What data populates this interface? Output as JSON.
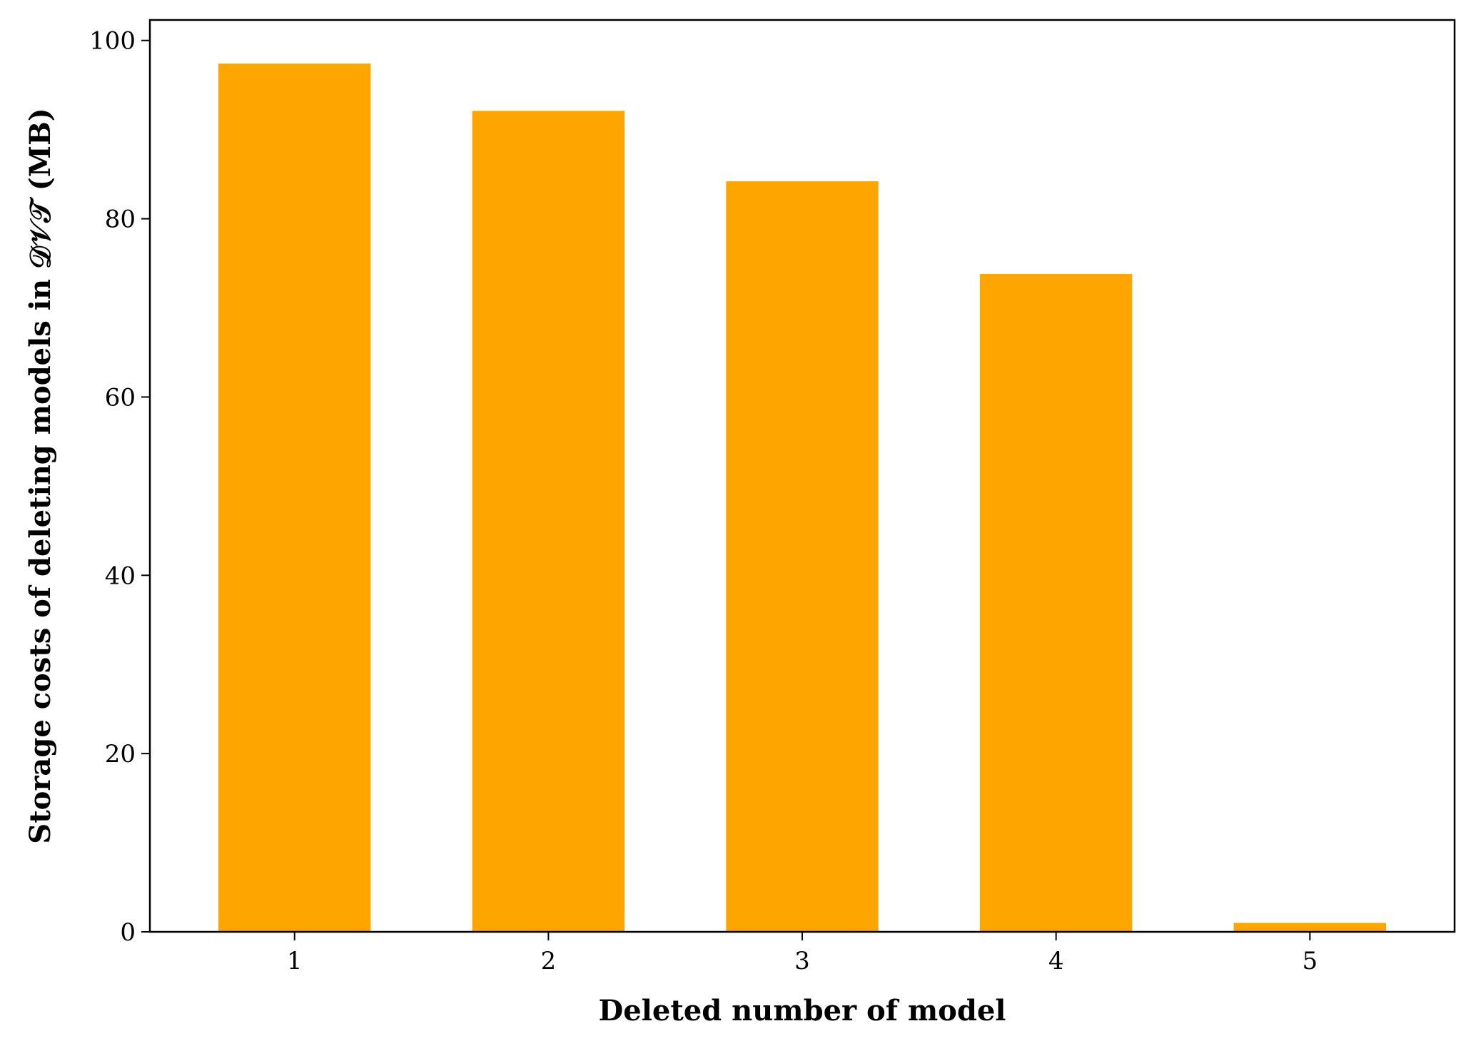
{
  "chart_data": {
    "type": "bar",
    "categories": [
      "1",
      "2",
      "3",
      "4",
      "5"
    ],
    "values": [
      97.4,
      92.1,
      84.2,
      73.8,
      1.0
    ],
    "xlabel": "Deleted number of model",
    "ylabel": "Storage costs of deleting models in 𝒟𝒱𝒯 (MB)",
    "ylim": [
      0,
      102.3
    ],
    "yticks": [
      0,
      20,
      40,
      60,
      80,
      100
    ],
    "bar_color": "#ffa500",
    "grid": false,
    "legend": "none"
  }
}
